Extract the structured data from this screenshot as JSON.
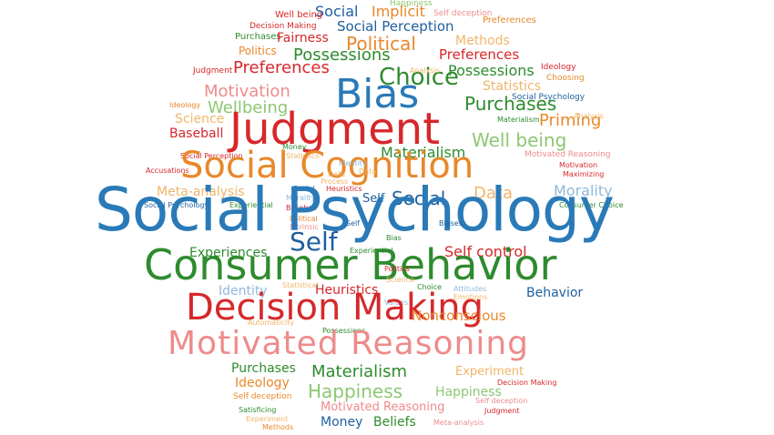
{
  "colors": {
    "blue": "#2A7AB8",
    "red": "#D6282B",
    "green": "#3A9B3A",
    "orange": "#E8882A",
    "pink": "#EE8B8B",
    "light_green": "#8DC773",
    "light_blue": "#8FB9DC",
    "light_orange": "#F0B56A"
  },
  "words": [
    {
      "text": "Happiness"
    },
    {
      "text": "Social"
    },
    {
      "text": "Implicit"
    },
    {
      "text": "Self deception"
    },
    {
      "text": "Well being"
    },
    {
      "text": "Preferences"
    },
    {
      "text": "Decision Making"
    },
    {
      "text": "Social Perception"
    },
    {
      "text": "Purchases"
    },
    {
      "text": "Fairness"
    },
    {
      "text": "Political"
    },
    {
      "text": "Methods"
    },
    {
      "text": "Politics"
    },
    {
      "text": "Possessions"
    },
    {
      "text": "Preferences"
    },
    {
      "text": "Judgment"
    },
    {
      "text": "Preferences"
    },
    {
      "text": "Choice"
    },
    {
      "text": "Possessions"
    },
    {
      "text": "Ideology"
    },
    {
      "text": "Analysis"
    },
    {
      "text": "Statistics"
    },
    {
      "text": "Choosing"
    },
    {
      "text": "Motivation"
    },
    {
      "text": "Bias"
    },
    {
      "text": "Social Psychology"
    },
    {
      "text": "Ideology"
    },
    {
      "text": "Wellbeing"
    },
    {
      "text": "Purchases"
    },
    {
      "text": "Science"
    },
    {
      "text": "Materialism"
    },
    {
      "text": "Priming"
    },
    {
      "text": "Analysis"
    },
    {
      "text": "Judgment"
    },
    {
      "text": "Baseball"
    },
    {
      "text": "Well being"
    },
    {
      "text": "Money"
    },
    {
      "text": "Materialism"
    },
    {
      "text": "Motivated Reasoning"
    },
    {
      "text": "Social Perception"
    },
    {
      "text": "Statistics"
    },
    {
      "text": "Motivation"
    },
    {
      "text": "Social Cognition"
    },
    {
      "text": "Identity"
    },
    {
      "text": "Accusations"
    },
    {
      "text": "Data"
    },
    {
      "text": "Maximizing"
    },
    {
      "text": "Process"
    },
    {
      "text": "Data"
    },
    {
      "text": "Social"
    },
    {
      "text": "Heuristics"
    },
    {
      "text": "Meta-analysis"
    },
    {
      "text": "Morality"
    },
    {
      "text": "Self"
    },
    {
      "text": "Social"
    },
    {
      "text": "Data"
    },
    {
      "text": "Morality"
    },
    {
      "text": "Social Psychology"
    },
    {
      "text": "Experiential"
    },
    {
      "text": "Intrinsic"
    },
    {
      "text": "Consumer Choice"
    },
    {
      "text": "Baseball"
    },
    {
      "text": "Political"
    },
    {
      "text": "Social Psychology"
    },
    {
      "text": "Self"
    },
    {
      "text": "Biases"
    },
    {
      "text": "Self"
    },
    {
      "text": "Bias"
    },
    {
      "text": "Experiences"
    },
    {
      "text": "Experiential"
    },
    {
      "text": "Self control"
    },
    {
      "text": "Consumer Behavior"
    },
    {
      "text": "Politics"
    },
    {
      "text": "Science"
    },
    {
      "text": "Identity"
    },
    {
      "text": "Statistical"
    },
    {
      "text": "Heuristics"
    },
    {
      "text": "Choice"
    },
    {
      "text": "Attitudes"
    },
    {
      "text": "Emotions"
    },
    {
      "text": "Behavior"
    },
    {
      "text": "Values"
    },
    {
      "text": "Decision Making"
    },
    {
      "text": "Nonconscious"
    },
    {
      "text": "Automaticity"
    },
    {
      "text": "Possessions"
    },
    {
      "text": "Motivated Reasoning"
    },
    {
      "text": "Purchases"
    },
    {
      "text": "Materialism"
    },
    {
      "text": "Experiment"
    },
    {
      "text": "Ideology"
    },
    {
      "text": "Decision Making"
    },
    {
      "text": "Happiness"
    },
    {
      "text": "Happiness"
    },
    {
      "text": "Self deception"
    },
    {
      "text": "Self deception"
    },
    {
      "text": "Motivated Reasoning"
    },
    {
      "text": "Satisficing"
    },
    {
      "text": "Judgment"
    },
    {
      "text": "Experiment"
    },
    {
      "text": "Money"
    },
    {
      "text": "Beliefs"
    },
    {
      "text": "Meta-analysis"
    },
    {
      "text": "Methods"
    }
  ]
}
